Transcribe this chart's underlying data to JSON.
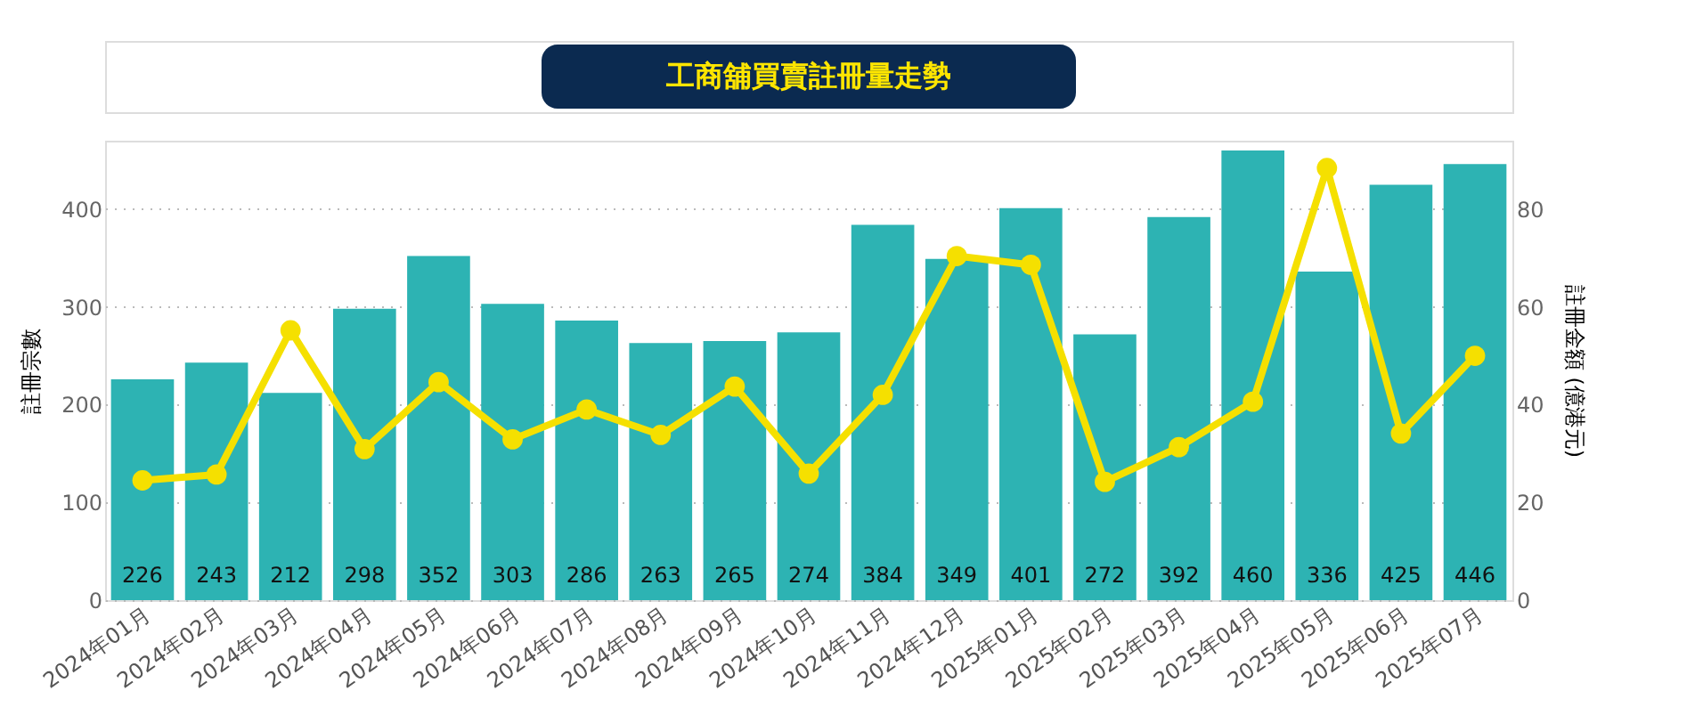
{
  "chart_data": {
    "type": "bar",
    "title": "工商舖買賣註冊量走勢",
    "categories": [
      "2024年01月",
      "2024年02月",
      "2024年03月",
      "2024年04月",
      "2024年05月",
      "2024年06月",
      "2024年07月",
      "2024年08月",
      "2024年09月",
      "2024年10月",
      "2024年11月",
      "2024年12月",
      "2025年01月",
      "2025年02月",
      "2025年03月",
      "2025年04月",
      "2025年05月",
      "2025年06月",
      "2025年07月"
    ],
    "series": [
      {
        "color": "#2db3b3",
        "values": [
          226,
          243,
          212,
          298,
          352,
          303,
          286,
          263,
          265,
          274,
          384,
          349,
          401,
          272,
          392,
          460,
          336,
          425,
          446
        ],
        "value_labels": [
          "226",
          "243",
          "212",
          "298",
          "352",
          "303",
          "286",
          "263",
          "265",
          "274",
          "384",
          "349",
          "401",
          "272",
          "392",
          "460",
          "336",
          "425",
          "446"
        ]
      },
      {
        "type": "line",
        "axis": "y2",
        "color": "#f5e000",
        "marker": "circle",
        "line_style": "solid",
        "values": [
          24.5,
          25.7,
          55.2,
          30.9,
          44.6,
          32.9,
          39.0,
          33.8,
          43.7,
          25.9,
          42.0,
          70.4,
          68.6,
          24.2,
          31.3,
          40.6,
          88.4,
          34.1,
          50.0
        ]
      }
    ],
    "ylabel": "註冊宗數",
    "y2label": "註冊金額 (億港元)",
    "ylim": [
      0,
      470
    ],
    "yticks": [
      0,
      100,
      200,
      300,
      400
    ],
    "y2lim": [
      0,
      94
    ],
    "y2ticks": [
      0,
      20,
      40,
      60,
      80
    ],
    "grid": "y"
  }
}
